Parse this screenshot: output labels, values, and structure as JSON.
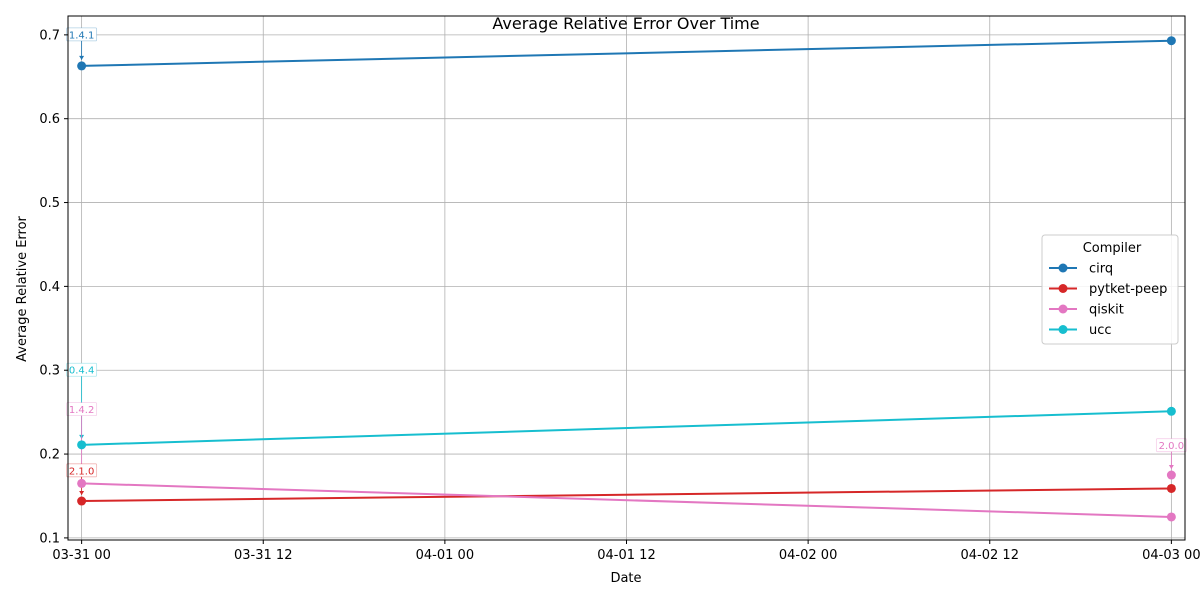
{
  "chart_data": {
    "type": "line",
    "title": "Average Relative Error Over Time",
    "xlabel": "Date",
    "ylabel": "Average Relative Error",
    "x_ticks": [
      "03-31 00",
      "03-31 12",
      "04-01 00",
      "04-01 12",
      "04-02 00",
      "04-02 12",
      "04-03 00"
    ],
    "y_ticks": [
      "0.1",
      "0.2",
      "0.3",
      "0.4",
      "0.5",
      "0.6",
      "0.7"
    ],
    "xlim": [
      "2025-03-30T23:06",
      "2025-04-03T00:54"
    ],
    "ylim": [
      0.0975,
      0.7225
    ],
    "grid": true,
    "legend": {
      "title": "Compiler",
      "position": "center-right"
    },
    "series": [
      {
        "name": "cirq",
        "color": "#1f77b4",
        "points": [
          {
            "x": "2025-03-31T00:00",
            "y": 0.663
          },
          {
            "x": "2025-04-03T00:00",
            "y": 0.693
          }
        ]
      },
      {
        "name": "pytket-peep",
        "color": "#d62728",
        "points": [
          {
            "x": "2025-03-31T00:00",
            "y": 0.144
          },
          {
            "x": "2025-04-03T00:00",
            "y": 0.159
          }
        ]
      },
      {
        "name": "qiskit",
        "color": "#e377c2",
        "points": [
          {
            "x": "2025-03-31T00:00",
            "y": 0.165
          },
          {
            "x": "2025-04-03T00:00",
            "y": 0.125
          }
        ],
        "extra_points": [
          {
            "x": "2025-04-03T00:00",
            "y": 0.175
          }
        ]
      },
      {
        "name": "ucc",
        "color": "#17becf",
        "points": [
          {
            "x": "2025-03-31T00:00",
            "y": 0.211
          },
          {
            "x": "2025-04-03T00:00",
            "y": 0.251
          }
        ]
      }
    ],
    "annotations": [
      {
        "text": "1.4.1",
        "color": "#1f77b4",
        "x": "2025-03-31T00:00",
        "y": 0.663,
        "label_y": 0.7
      },
      {
        "text": "0.4.4",
        "color": "#17becf",
        "x": "2025-03-31T00:00",
        "y": 0.211,
        "label_y": 0.3
      },
      {
        "text": "1.4.2",
        "color": "#e377c2",
        "x": "2025-03-31T00:00",
        "y": 0.165,
        "label_y": 0.253
      },
      {
        "text": "2.1.0",
        "color": "#d62728",
        "x": "2025-03-31T00:00",
        "y": 0.144,
        "label_y": 0.18
      },
      {
        "text": "2.0.0",
        "color": "#e377c2",
        "x": "2025-04-03T00:00",
        "y": 0.175,
        "label_y": 0.21
      }
    ]
  }
}
